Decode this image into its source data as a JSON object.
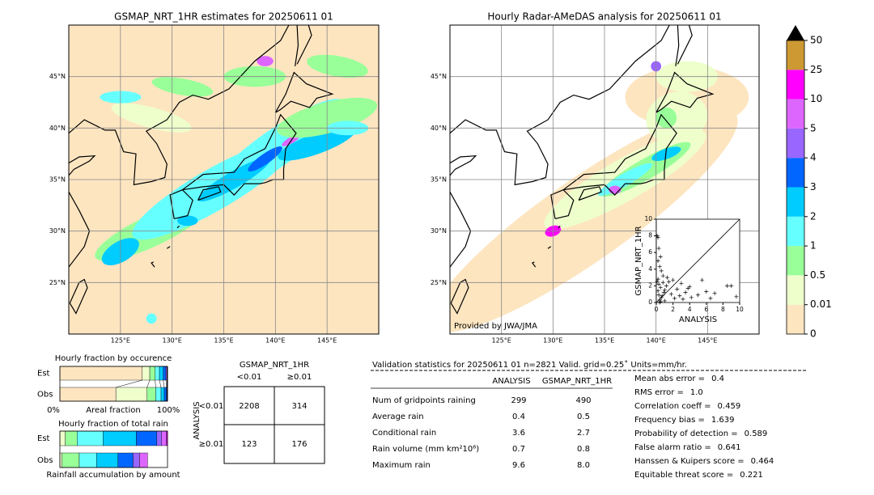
{
  "maps": [
    {
      "title": "GSMAP_NRT_1HR estimates for 20250611 01",
      "lonlim": [
        120,
        150
      ],
      "latlim": [
        20,
        50
      ],
      "lonticks": [
        {
          "value": 125,
          "label": "125°E"
        },
        {
          "value": 130,
          "label": "130°E"
        },
        {
          "value": 135,
          "label": "135°E"
        },
        {
          "value": 140,
          "label": "140°E"
        },
        {
          "value": 145,
          "label": "145°E"
        }
      ],
      "latticks": [
        {
          "value": 25,
          "label": "25°N"
        },
        {
          "value": 30,
          "label": "30°N"
        },
        {
          "value": 35,
          "label": "35°N"
        },
        {
          "value": 40,
          "label": "40°N"
        },
        {
          "value": 45,
          "label": "45°N"
        }
      ]
    },
    {
      "title": "Hourly Radar-AMeDAS analysis for 20250611 01",
      "lonlim": [
        120,
        150
      ],
      "latlim": [
        20,
        50
      ],
      "lonticks": [
        {
          "value": 125,
          "label": "125°E"
        },
        {
          "value": 130,
          "label": "130°E"
        },
        {
          "value": 135,
          "label": "135°E"
        },
        {
          "value": 140,
          "label": "140°E"
        },
        {
          "value": 145,
          "label": "145°E"
        }
      ],
      "latticks": [
        {
          "value": 25,
          "label": "25°N"
        },
        {
          "value": 30,
          "label": "30°N"
        },
        {
          "value": 35,
          "label": "35°N"
        },
        {
          "value": 40,
          "label": "40°N"
        },
        {
          "value": 45,
          "label": "45°N"
        }
      ],
      "credit": "Provided by JWA/JMA"
    }
  ],
  "colorbar": {
    "bounds": [
      0,
      0.01,
      0.5,
      1,
      2,
      3,
      4,
      5,
      10,
      25,
      50
    ],
    "colors": [
      "#fde5c0",
      "#eeffcc",
      "#99ff99",
      "#66ffff",
      "#00ccff",
      "#0066ff",
      "#9966ff",
      "#dd66ff",
      "#ff00ff",
      "#cc9933"
    ],
    "extend_color": "#000000"
  },
  "scatter": {
    "type": "scatter",
    "xlabel": "ANALYSIS",
    "ylabel": "GSMAP_NRT_1HR",
    "xlim": [
      0,
      10
    ],
    "ylim": [
      0,
      10
    ],
    "xticks": [
      0,
      2,
      4,
      6,
      8,
      10
    ],
    "yticks": [
      0,
      2,
      4,
      6,
      8,
      10
    ],
    "x": [
      0.2,
      0.3,
      0.5,
      0.4,
      0.6,
      0.8,
      0.2,
      0.1,
      0.3,
      0.5,
      1.0,
      1.2,
      0.7,
      0.9,
      1.5,
      1.8,
      2.0,
      2.2,
      2.5,
      3.0,
      3.2,
      3.5,
      4.0,
      4.2,
      5.0,
      5.5,
      6.0,
      7.0,
      8.5,
      9.0,
      9.6,
      0.3,
      0.2,
      0.4,
      0.6,
      0.5,
      1.0,
      1.3,
      0.1,
      0.2,
      0.8,
      2.8,
      3.8,
      6.5,
      0.4
    ],
    "y": [
      7.8,
      6.5,
      5.5,
      4.3,
      3.8,
      3.2,
      2.8,
      2.5,
      2.2,
      1.8,
      1.5,
      2.0,
      0.8,
      1.2,
      2.5,
      1.0,
      2.7,
      0.5,
      1.6,
      2.3,
      0.4,
      1.2,
      1.9,
      0.6,
      0.9,
      2.7,
      1.3,
      1.1,
      2.0,
      2.0,
      0.7,
      0.9,
      1.4,
      0.3,
      0.6,
      0.1,
      0.2,
      3.0,
      8.0,
      5.0,
      2.4,
      0.8,
      1.7,
      0.5,
      0.0
    ]
  },
  "occurrence": {
    "title": "Hourly fraction by occurence",
    "rows": [
      {
        "name": "Est",
        "values": [
          76.5,
          7,
          5,
          4,
          3.5,
          2.5,
          1,
          0.3,
          0.2,
          0
        ]
      },
      {
        "name": "Obs",
        "values": [
          52,
          29,
          8,
          5,
          3,
          2,
          0.5,
          0.3,
          0.2,
          0
        ]
      }
    ],
    "left_label": "0%",
    "center_label": "Areal fraction",
    "right_label": "100%"
  },
  "total_rain": {
    "title": "Hourly fraction of total rain",
    "rows": [
      {
        "name": "Est",
        "values": [
          0,
          5,
          11,
          24,
          31,
          19,
          4.5,
          4.5,
          1,
          0
        ]
      },
      {
        "name": "Obs",
        "values": [
          0,
          2,
          16,
          16,
          20,
          14,
          6,
          7.5,
          0,
          0
        ]
      }
    ],
    "xlabel": "Rainfall accumulation by amount"
  },
  "contingency": {
    "title": "GSMAP_NRT_1HR",
    "col_labels": [
      "<0.01",
      "≥0.01"
    ],
    "row_title": "ANALYSIS",
    "row_labels": [
      "<0.01",
      "≥0.01"
    ],
    "cells": [
      [
        2208,
        314
      ],
      [
        123,
        176
      ]
    ]
  },
  "validation": {
    "title": "Validation statistics for 20250611 01  n=2821 Valid. grid=0.25˚ Units=mm/hr.",
    "columns": [
      "ANALYSIS",
      "GSMAP_NRT_1HR"
    ],
    "rows": [
      {
        "name": "Num of gridpoints raining",
        "values": [
          299,
          490
        ]
      },
      {
        "name": "Average rain",
        "values": [
          0.4,
          0.5
        ]
      },
      {
        "name": "Conditional rain",
        "values": [
          3.6,
          2.7
        ]
      },
      {
        "name": "Rain volume (mm km²10⁶)",
        "values": [
          0.7,
          0.8
        ]
      },
      {
        "name": "Maximum rain",
        "values": [
          9.6,
          {
            "value": 8,
            "label": "8.0"
          }
        ]
      }
    ],
    "scores": [
      {
        "label": "Mean abs error =",
        "value": 0.4
      },
      {
        "label": "RMS error =",
        "value": {
          "value": 1,
          "label": "1.0"
        }
      },
      {
        "label": "Correlation coeff =",
        "value": 0.459
      },
      {
        "label": "Frequency bias =",
        "value": 1.639
      },
      {
        "label": "Probability of detection =",
        "value": 0.589
      },
      {
        "label": "False alarm ratio =",
        "value": 0.641
      },
      {
        "label": "Hanssen & Kuipers score =",
        "value": 0.464
      },
      {
        "label": "Equitable threat score =",
        "value": 0.221
      }
    ]
  }
}
